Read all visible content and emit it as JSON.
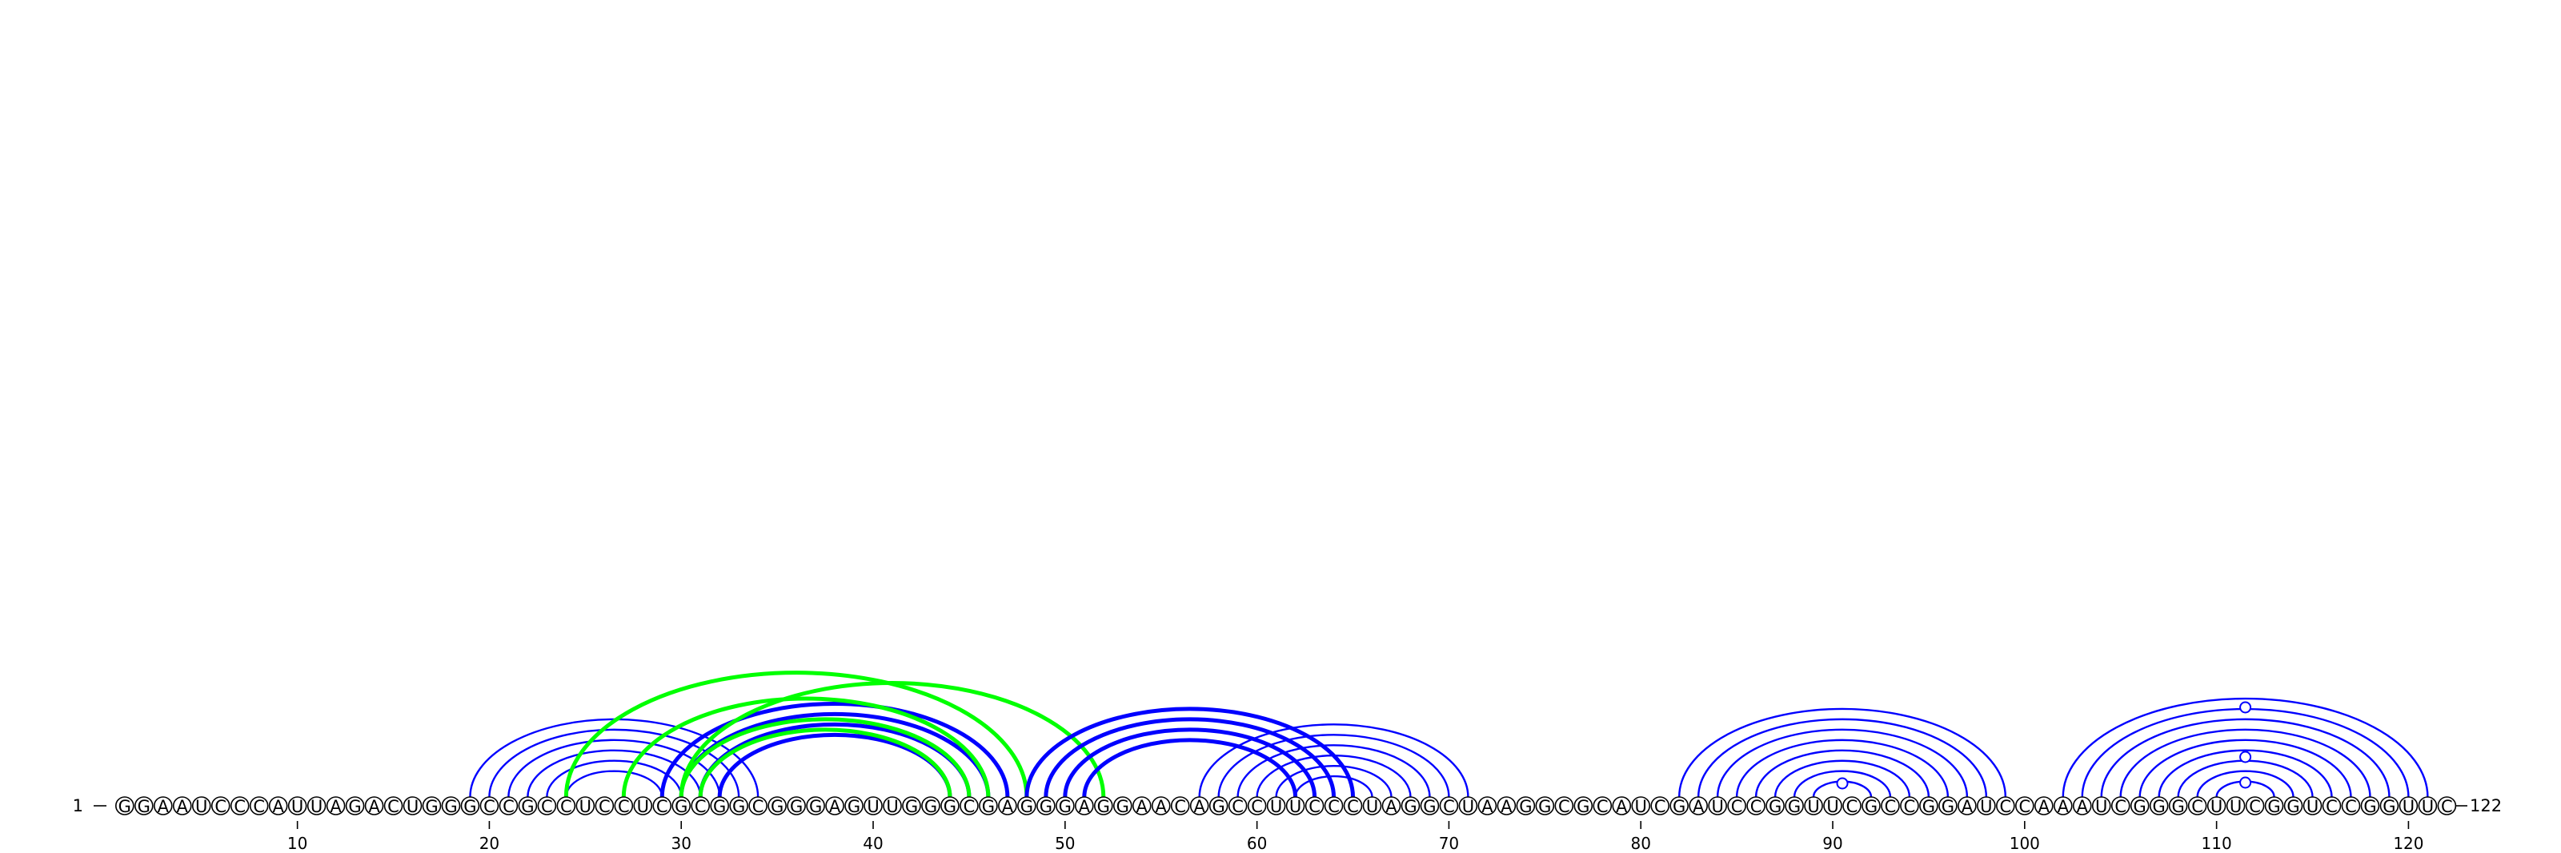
{
  "sequence": "GGAAUCCCAUUAGACUGGGCCGCCUCCUCGCGGCGGGAGUUGGGCGAGGGAGGAACAGCCUUCCCUAGGCUAAGGCGCAUCGAUCCGGUUCGCCGGAUCCAAAUCGGGCUUCGGUCCGGUUC",
  "start_label": "1",
  "end_label": "122",
  "ticks": [
    10,
    20,
    30,
    40,
    50,
    60,
    70,
    80,
    90,
    100,
    110,
    120
  ],
  "colors": {
    "blue": "#0000ff",
    "green": "#00ff00",
    "circle_stroke": "#000000"
  },
  "arc_groups": [
    {
      "color": "blue",
      "weight": "thin",
      "pairs": [
        [
          19,
          34
        ],
        [
          20,
          33
        ],
        [
          21,
          32
        ],
        [
          22,
          31
        ],
        [
          23,
          30
        ],
        [
          24,
          29
        ]
      ]
    },
    {
      "color": "blue",
      "weight": "thick",
      "pairs": [
        [
          29,
          47
        ],
        [
          30,
          46
        ],
        [
          31,
          45
        ],
        [
          32,
          44
        ]
      ]
    },
    {
      "color": "green",
      "weight": "thick",
      "pairs": [
        [
          27,
          46
        ],
        [
          30,
          45
        ],
        [
          31,
          44
        ],
        [
          24,
          48
        ],
        [
          30,
          52
        ]
      ]
    },
    {
      "color": "blue",
      "weight": "thick",
      "pairs": [
        [
          48,
          65
        ],
        [
          49,
          64
        ],
        [
          50,
          63
        ],
        [
          51,
          62
        ]
      ]
    },
    {
      "color": "blue",
      "weight": "thin",
      "pairs": [
        [
          57,
          71
        ],
        [
          58,
          70
        ],
        [
          59,
          69
        ],
        [
          60,
          68
        ],
        [
          61,
          67
        ],
        [
          62,
          66
        ]
      ]
    },
    {
      "color": "blue",
      "weight": "thin",
      "pairs": [
        [
          82,
          99
        ],
        [
          83,
          98
        ],
        [
          84,
          97
        ],
        [
          85,
          96
        ],
        [
          86,
          95
        ],
        [
          87,
          94
        ],
        [
          88,
          93
        ],
        [
          89,
          92
        ]
      ]
    },
    {
      "color": "blue",
      "weight": "thin",
      "pairs": [
        [
          102,
          121
        ],
        [
          103,
          120
        ],
        [
          104,
          119
        ],
        [
          105,
          118
        ],
        [
          106,
          117
        ],
        [
          107,
          116
        ],
        [
          108,
          115
        ],
        [
          109,
          114
        ],
        [
          110,
          113
        ]
      ]
    }
  ],
  "loop_markers": [
    90.5,
    111.5,
    111.5,
    111.5
  ]
}
